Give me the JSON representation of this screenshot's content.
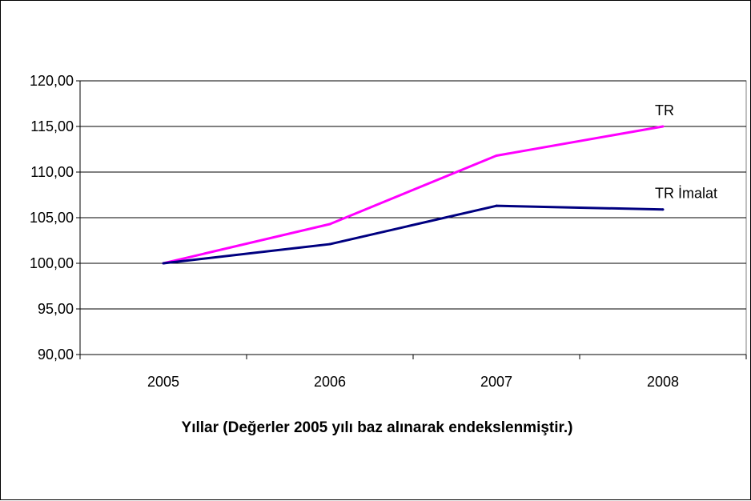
{
  "chart_data": {
    "type": "line",
    "categories": [
      "2005",
      "2006",
      "2007",
      "2008"
    ],
    "series": [
      {
        "name": "TR",
        "values": [
          100.0,
          104.3,
          111.8,
          115.0
        ],
        "color": "#FF00FF"
      },
      {
        "name": "TR İmalat",
        "values": [
          100.0,
          102.1,
          106.3,
          105.9
        ],
        "color": "#000080"
      }
    ],
    "xlabel": "Yıllar (Değerler 2005 yılı baz alınarak endekslenmiştir.)",
    "ylabel": "",
    "ylim": [
      90,
      120
    ],
    "y_ticks": [
      "90,00",
      "95,00",
      "100,00",
      "105,00",
      "110,00",
      "115,00",
      "120,00"
    ],
    "grid": true,
    "legend": "labels at line ends"
  }
}
